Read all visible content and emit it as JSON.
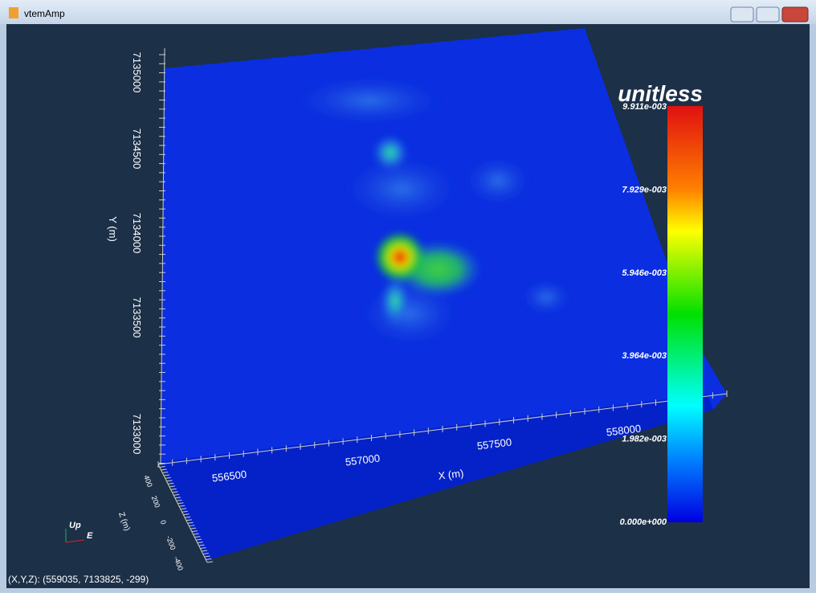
{
  "window": {
    "title": "vtemAmp"
  },
  "axes": {
    "y": {
      "title": "Y (m)",
      "labels": [
        "7135000",
        "7134500",
        "7134000",
        "7133500",
        "7133000"
      ]
    },
    "x": {
      "title": "X (m)",
      "labels": [
        "556500",
        "557000",
        "557500",
        "558000"
      ]
    },
    "z": {
      "title": "Z (m)",
      "labels": [
        "400",
        "200",
        "0",
        "-200",
        "-400"
      ]
    }
  },
  "colorbar": {
    "title": "unitless",
    "labels": [
      "9.911e-003",
      "7.929e-003",
      "5.946e-003",
      "3.964e-003",
      "1.982e-003",
      "0.000e+000"
    ]
  },
  "orientation": {
    "up": "Up",
    "east": "E"
  },
  "status": "(X,Y,Z): (559035, 7133825,  -299)"
}
